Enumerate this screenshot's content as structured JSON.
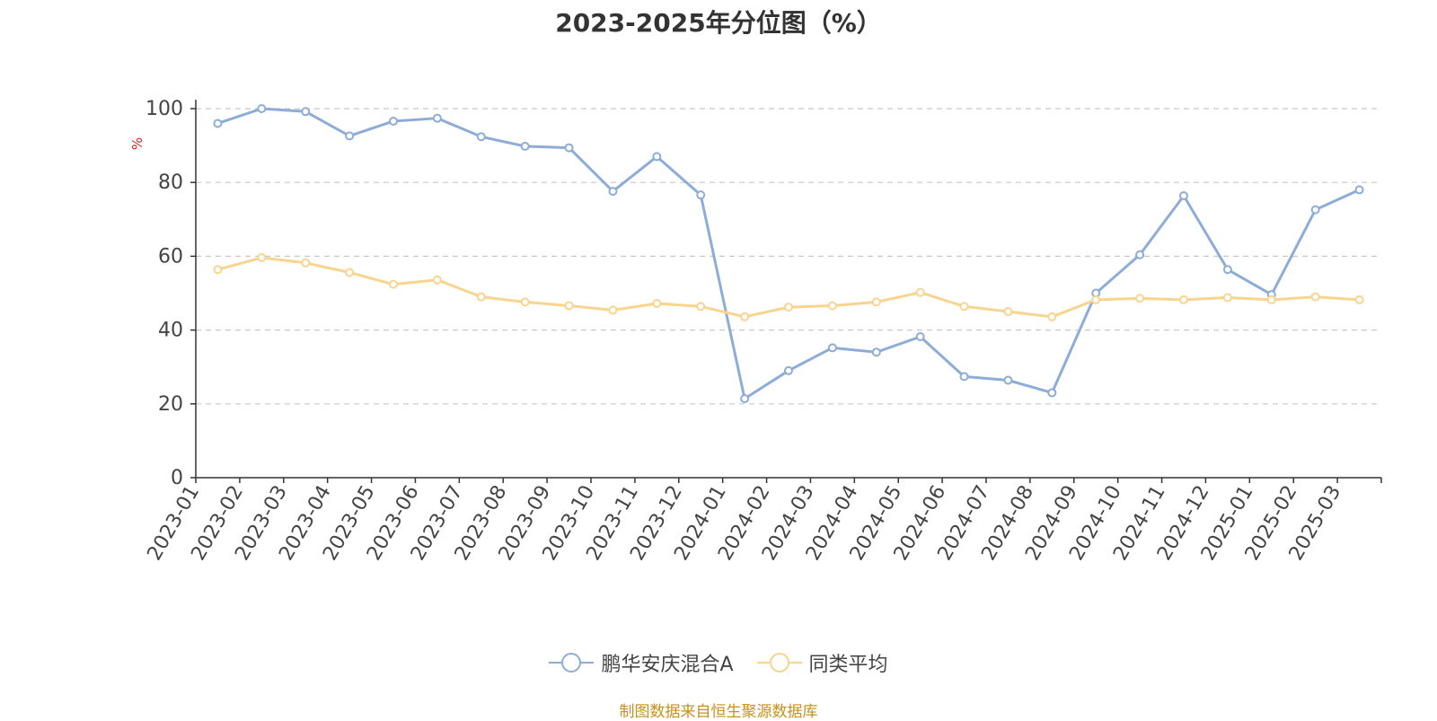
{
  "title": "2023-2025年分位图（%）",
  "source": "制图数据来自恒生聚源数据库",
  "chart_data": {
    "type": "line",
    "title": "2023-2025年分位图（%）",
    "ylabel": "%",
    "ylim": [
      0,
      100
    ],
    "yticks": [
      0,
      20,
      40,
      60,
      80,
      100
    ],
    "grid": true,
    "legend_position": "bottom",
    "categories": [
      "2023-01",
      "2023-02",
      "2023-03",
      "2023-04",
      "2023-05",
      "2023-06",
      "2023-07",
      "2023-08",
      "2023-09",
      "2023-10",
      "2023-11",
      "2023-12",
      "2024-01",
      "2024-02",
      "2024-03",
      "2024-04",
      "2024-05",
      "2024-06",
      "2024-07",
      "2024-08",
      "2024-09",
      "2024-10",
      "2024-11",
      "2024-12",
      "2025-01",
      "2025-02",
      "2025-03"
    ],
    "series": [
      {
        "name": "鹏华安庆混合A",
        "color": "#8eacd8",
        "values": [
          96,
          100,
          99.2,
          92.6,
          96.6,
          97.4,
          92.4,
          89.8,
          89.4,
          77.6,
          87,
          76.6,
          21.4,
          29,
          35.2,
          34,
          38.2,
          27.4,
          26.4,
          23,
          50,
          60.4,
          76.4,
          56.4,
          49.6,
          72.6,
          78
        ]
      },
      {
        "name": "同类平均",
        "color": "#f9d48f",
        "values": [
          56.4,
          59.6,
          58.2,
          55.6,
          52.4,
          53.6,
          49,
          47.6,
          46.6,
          45.4,
          47.2,
          46.4,
          43.6,
          46.2,
          46.6,
          47.6,
          50.2,
          46.4,
          45,
          43.6,
          48.2,
          48.6,
          48.2,
          48.8,
          48.2,
          49,
          48.2
        ]
      }
    ]
  }
}
